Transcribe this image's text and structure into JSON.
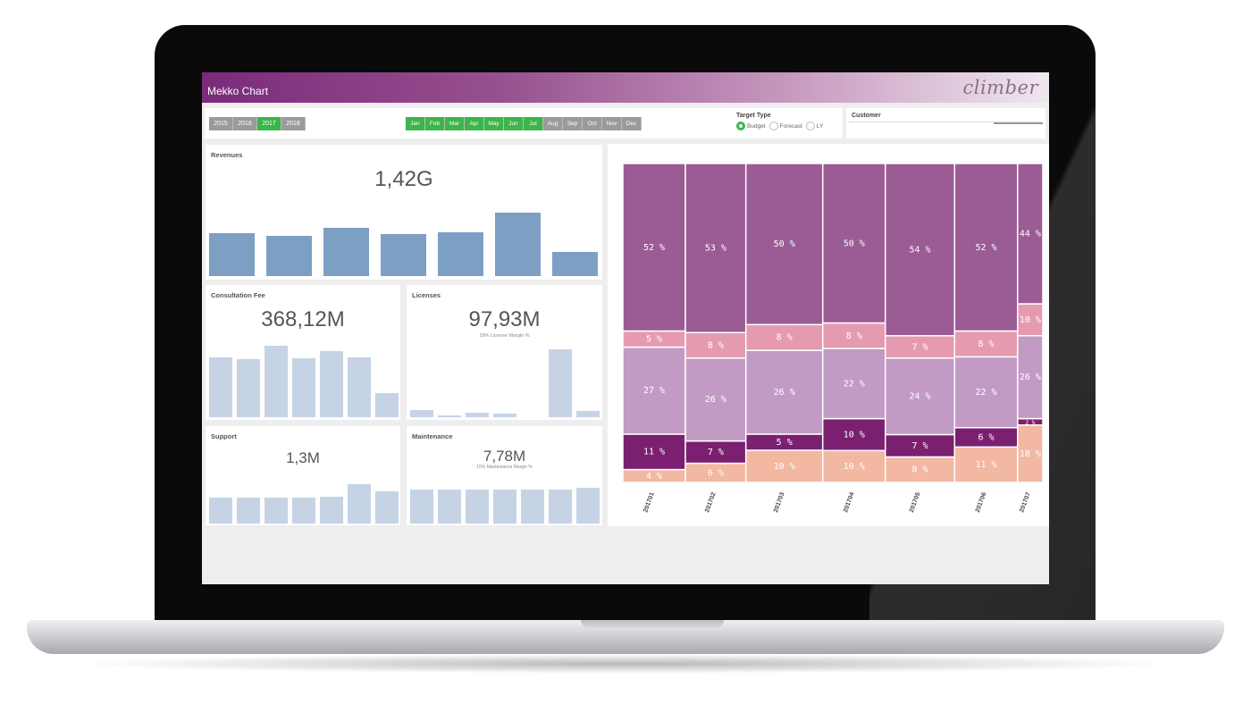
{
  "app": {
    "title": "Mekko Chart",
    "logo": "climber"
  },
  "filters": {
    "years": [
      {
        "label": "2015",
        "selected": false
      },
      {
        "label": "2016",
        "selected": false
      },
      {
        "label": "2017",
        "selected": true
      },
      {
        "label": "2018",
        "selected": false
      }
    ],
    "months": [
      {
        "label": "Jan",
        "selected": true
      },
      {
        "label": "Feb",
        "selected": true
      },
      {
        "label": "Mar",
        "selected": true
      },
      {
        "label": "Apr",
        "selected": true
      },
      {
        "label": "May",
        "selected": true
      },
      {
        "label": "Jun",
        "selected": true
      },
      {
        "label": "Jul",
        "selected": true
      },
      {
        "label": "Aug",
        "selected": false
      },
      {
        "label": "Sep",
        "selected": false
      },
      {
        "label": "Oct",
        "selected": false
      },
      {
        "label": "Nov",
        "selected": false
      },
      {
        "label": "Dec",
        "selected": false
      }
    ],
    "target_type": {
      "title": "Target Type",
      "options": [
        {
          "label": "Budget",
          "selected": true
        },
        {
          "label": "Forecast",
          "selected": false
        },
        {
          "label": "LY",
          "selected": false
        }
      ]
    },
    "customer": {
      "label": "Customer"
    }
  },
  "kpis": {
    "revenues": {
      "title": "Revenues",
      "value": "1,42G",
      "bars": [
        0.59,
        0.55,
        0.66,
        0.57,
        0.6,
        0.87,
        0.33
      ]
    },
    "consultation": {
      "title": "Consultation Fee",
      "value": "368,12M",
      "bars": [
        0.82,
        0.79,
        0.98,
        0.81,
        0.9,
        0.82,
        0.33
      ]
    },
    "licenses": {
      "title": "Licenses",
      "value": "97,93M",
      "subtitle": "18% License Margin %",
      "bars": [
        0.1,
        0.03,
        0.06,
        0.05,
        0.0,
        0.93,
        0.08
      ]
    },
    "support": {
      "title": "Support",
      "value": "1,3M",
      "bars": [
        0.62,
        0.62,
        0.62,
        0.62,
        0.66,
        0.95,
        0.78
      ]
    },
    "maintenance": {
      "title": "Maintenance",
      "value": "7,78M",
      "subtitle": "15% Maintenance Margin %",
      "bars": [
        0.83,
        0.83,
        0.83,
        0.83,
        0.83,
        0.83,
        0.88
      ]
    }
  },
  "chart_data": {
    "type": "mekko",
    "categories": [
      "201701",
      "201702",
      "201703",
      "201704",
      "201705",
      "201706",
      "201707"
    ],
    "widths": [
      0.149,
      0.144,
      0.183,
      0.149,
      0.165,
      0.15,
      0.06
    ],
    "segment_colors": [
      "#f2b8a2",
      "#7b2070",
      "#c29bc4",
      "#e69ab0",
      "#9b5b95"
    ],
    "series": [
      {
        "values": [
          4,
          6,
          10,
          10,
          8,
          11,
          18
        ],
        "labels": [
          "4 %",
          "6 %",
          "10 %",
          "10 %",
          "8 %",
          "11 %",
          "18 %"
        ]
      },
      {
        "values": [
          11,
          7,
          5,
          10,
          7,
          6,
          2
        ],
        "labels": [
          "11 %",
          "7 %",
          "5 %",
          "10 %",
          "7 %",
          "6 %",
          "2 %"
        ]
      },
      {
        "values": [
          27,
          26,
          26,
          22,
          24,
          22,
          26
        ],
        "labels": [
          "27 %",
          "26 %",
          "26 %",
          "22 %",
          "24 %",
          "22 %",
          "26 %"
        ]
      },
      {
        "values": [
          5,
          8,
          8,
          8,
          7,
          8,
          10
        ],
        "labels": [
          "5 %",
          "8 %",
          "8 %",
          "8 %",
          "7 %",
          "8 %",
          "10 %"
        ]
      },
      {
        "values": [
          52,
          53,
          50,
          50,
          54,
          52,
          44
        ],
        "labels": [
          "52 %",
          "53 %",
          "50 %",
          "50 %",
          "54 %",
          "52 %",
          "44 %"
        ]
      }
    ]
  }
}
